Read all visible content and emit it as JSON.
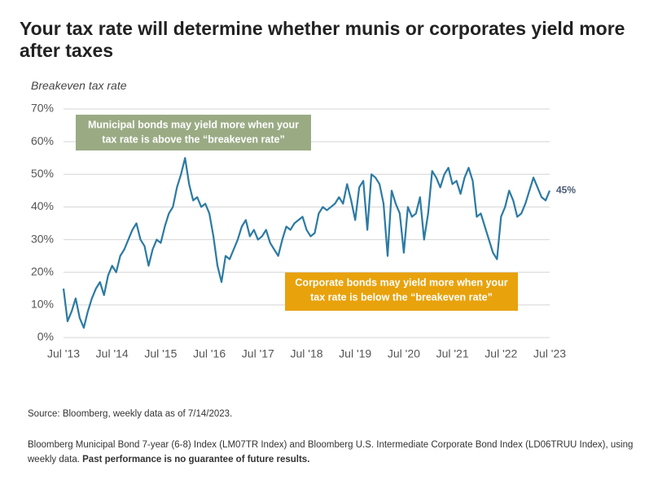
{
  "chart_data": {
    "type": "line",
    "title": "Your tax rate will determine whether munis or corporates yield more after taxes",
    "y_label": "Breakeven tax rate",
    "color": "#2b7aa3",
    "x": [
      "2013-07",
      "2013-08",
      "2013-09",
      "2013-10",
      "2013-11",
      "2013-12",
      "2014-01",
      "2014-02",
      "2014-03",
      "2014-04",
      "2014-05",
      "2014-06",
      "2014-07",
      "2014-08",
      "2014-09",
      "2014-10",
      "2014-11",
      "2014-12",
      "2015-01",
      "2015-02",
      "2015-03",
      "2015-04",
      "2015-05",
      "2015-06",
      "2015-07",
      "2015-08",
      "2015-09",
      "2015-10",
      "2015-11",
      "2015-12",
      "2016-01",
      "2016-02",
      "2016-03",
      "2016-04",
      "2016-05",
      "2016-06",
      "2016-07",
      "2016-08",
      "2016-09",
      "2016-10",
      "2016-11",
      "2016-12",
      "2017-01",
      "2017-02",
      "2017-03",
      "2017-04",
      "2017-05",
      "2017-06",
      "2017-07",
      "2017-08",
      "2017-09",
      "2017-10",
      "2017-11",
      "2017-12",
      "2018-01",
      "2018-02",
      "2018-03",
      "2018-04",
      "2018-05",
      "2018-06",
      "2018-07",
      "2018-08",
      "2018-09",
      "2018-10",
      "2018-11",
      "2018-12",
      "2019-01",
      "2019-02",
      "2019-03",
      "2019-04",
      "2019-05",
      "2019-06",
      "2019-07",
      "2019-08",
      "2019-09",
      "2019-10",
      "2019-11",
      "2019-12",
      "2020-01",
      "2020-02",
      "2020-03",
      "2020-04",
      "2020-05",
      "2020-06",
      "2020-07",
      "2020-08",
      "2020-09",
      "2020-10",
      "2020-11",
      "2020-12",
      "2021-01",
      "2021-02",
      "2021-03",
      "2021-04",
      "2021-05",
      "2021-06",
      "2021-07",
      "2021-08",
      "2021-09",
      "2021-10",
      "2021-11",
      "2021-12",
      "2022-01",
      "2022-02",
      "2022-03",
      "2022-04",
      "2022-05",
      "2022-06",
      "2022-07",
      "2022-08",
      "2022-09",
      "2022-10",
      "2022-11",
      "2022-12",
      "2023-01",
      "2023-02",
      "2023-03",
      "2023-04",
      "2023-05",
      "2023-06",
      "2023-07"
    ],
    "values": [
      15,
      5,
      8,
      12,
      6,
      3,
      8,
      12,
      15,
      17,
      13,
      19,
      22,
      20,
      25,
      27,
      30,
      33,
      35,
      30,
      28,
      22,
      27,
      30,
      29,
      34,
      38,
      40,
      46,
      50,
      55,
      47,
      42,
      43,
      40,
      41,
      38,
      31,
      22,
      17,
      25,
      24,
      27,
      30,
      34,
      36,
      31,
      33,
      30,
      31,
      33,
      29,
      27,
      25,
      30,
      34,
      33,
      35,
      36,
      37,
      33,
      31,
      32,
      38,
      40,
      39,
      40,
      41,
      43,
      41,
      47,
      42,
      36,
      46,
      48,
      33,
      50,
      49,
      47,
      41,
      25,
      45,
      41,
      38,
      26,
      40,
      37,
      38,
      43,
      30,
      38,
      51,
      49,
      46,
      50,
      52,
      47,
      48,
      44,
      49,
      52,
      48,
      37,
      38,
      34,
      30,
      26,
      24,
      37,
      40,
      45,
      42,
      37,
      38,
      41,
      45,
      49,
      46,
      43,
      42,
      45
    ],
    "value_labels": [
      null,
      null,
      null,
      null,
      null,
      null,
      null,
      null,
      null,
      null,
      null,
      null,
      null,
      null,
      null,
      null,
      null,
      null,
      null,
      null,
      null,
      null,
      null,
      null,
      null,
      null,
      null,
      null,
      null,
      null,
      null,
      null,
      null,
      null,
      null,
      null,
      null,
      null,
      null,
      null,
      null,
      null,
      null,
      null,
      null,
      null,
      null,
      null,
      null,
      null,
      null,
      null,
      null,
      null,
      null,
      null,
      null,
      null,
      null,
      null,
      null,
      null,
      null,
      null,
      null,
      null,
      null,
      null,
      null,
      null,
      null,
      null,
      null,
      null,
      null,
      null,
      null,
      null,
      null,
      null,
      null,
      null,
      null,
      null,
      null,
      null,
      null,
      null,
      null,
      null,
      null,
      null,
      null,
      null,
      null,
      null,
      null,
      null,
      null,
      null,
      null,
      null,
      null,
      null,
      null,
      null,
      null,
      null,
      null,
      null,
      null,
      null,
      null,
      null,
      null,
      null,
      null,
      null,
      null,
      null,
      "45%"
    ],
    "ylim": [
      0,
      70
    ],
    "yticks": [
      {
        "value": 0,
        "label": "0%"
      },
      {
        "value": 10,
        "label": "10%"
      },
      {
        "value": 20,
        "label": "20%"
      },
      {
        "value": 30,
        "label": "30%"
      },
      {
        "value": 40,
        "label": "40%"
      },
      {
        "value": 50,
        "label": "50%"
      },
      {
        "value": 60,
        "label": "60%"
      },
      {
        "value": 70,
        "label": "70%"
      }
    ],
    "xticks": [
      {
        "value": "2013-07",
        "label": "Jul '13"
      },
      {
        "value": "2014-07",
        "label": "Jul '14"
      },
      {
        "value": "2015-07",
        "label": "Jul '15"
      },
      {
        "value": "2016-07",
        "label": "Jul '16"
      },
      {
        "value": "2017-07",
        "label": "Jul '17"
      },
      {
        "value": "2018-07",
        "label": "Jul '18"
      },
      {
        "value": "2019-07",
        "label": "Jul '19"
      },
      {
        "value": "2020-07",
        "label": "Jul '20"
      },
      {
        "value": "2021-07",
        "label": "Jul '21"
      },
      {
        "value": "2022-07",
        "label": "Jul '22"
      },
      {
        "value": "2023-07",
        "label": "Jul '23"
      }
    ],
    "grid": true,
    "annotations": [
      {
        "lines": [
          "Municipal bonds may yield more when your",
          "tax rate is above the “breakeven rate”"
        ],
        "color": "#9aab84"
      },
      {
        "lines": [
          "Corporate bonds may yield more when your",
          "tax rate is below the “breakeven rate”"
        ],
        "color": "#e8a20c"
      }
    ],
    "source": "Source: Bloomberg, weekly data as of 7/14/2023.",
    "footnote": "Bloomberg Municipal Bond 7-year (6-8) Index (LM07TR Index) and Bloomberg U.S. Intermediate Corporate Bond Index (LD06TRUU Index), using weekly data.",
    "footnote_emphasis": "Past performance is no guarantee of future results."
  }
}
